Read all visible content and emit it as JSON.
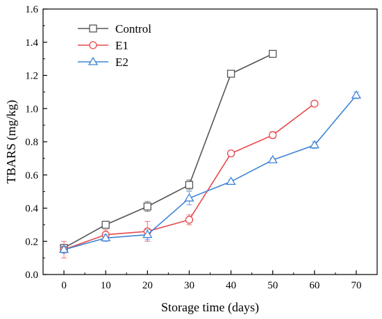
{
  "chart_data": {
    "type": "line",
    "title": "",
    "xlabel": "Storage time (days)",
    "ylabel": "TBARS (mg/kg)",
    "xlim": [
      -5,
      75
    ],
    "ylim": [
      0.0,
      1.6
    ],
    "xticks": [
      0,
      10,
      20,
      30,
      40,
      50,
      60,
      70
    ],
    "yticks": [
      0.0,
      0.2,
      0.4,
      0.6,
      0.8,
      1.0,
      1.2,
      1.4,
      1.6
    ],
    "xtick_labels": [
      "0",
      "10",
      "20",
      "30",
      "40",
      "50",
      "60",
      "70"
    ],
    "ytick_labels": [
      "0.0",
      "0.2",
      "0.4",
      "0.6",
      "0.8",
      "1.0",
      "1.2",
      "1.4",
      "1.6"
    ],
    "grid": false,
    "legend_position": "top-left",
    "series": [
      {
        "name": "Control",
        "color": "#555555",
        "marker": "square",
        "x": [
          0,
          10,
          20,
          30,
          40,
          50
        ],
        "y": [
          0.16,
          0.3,
          0.41,
          0.54,
          1.21,
          1.33
        ],
        "err": [
          0.02,
          0.02,
          0.03,
          0.03,
          0.02,
          0.01
        ]
      },
      {
        "name": "E1",
        "color": "#e8474b",
        "marker": "circle",
        "x": [
          0,
          10,
          20,
          30,
          40,
          50,
          60
        ],
        "y": [
          0.15,
          0.24,
          0.26,
          0.33,
          0.73,
          0.84,
          1.03
        ],
        "err": [
          0.05,
          0.03,
          0.06,
          0.03,
          0.01,
          0.02,
          0.01
        ]
      },
      {
        "name": "E2",
        "color": "#3f84d6",
        "marker": "triangle",
        "x": [
          0,
          10,
          20,
          30,
          40,
          50,
          60,
          70
        ],
        "y": [
          0.15,
          0.22,
          0.24,
          0.46,
          0.56,
          0.69,
          0.78,
          1.08
        ],
        "err": [
          0.02,
          0.02,
          0.03,
          0.04,
          0.01,
          0.01,
          0.02,
          0.02
        ]
      }
    ]
  }
}
